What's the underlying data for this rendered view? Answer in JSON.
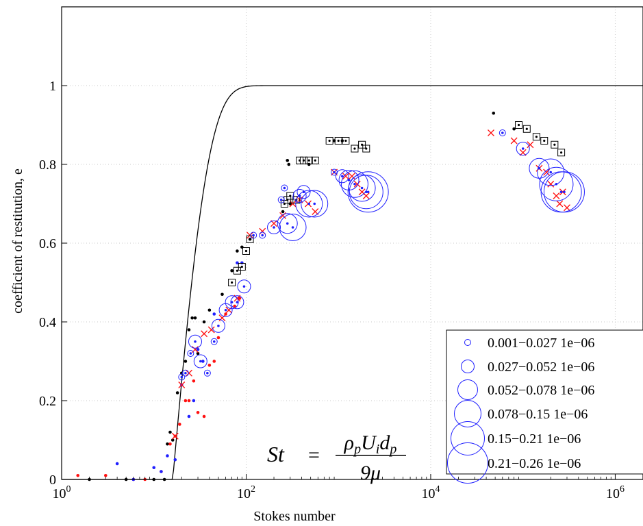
{
  "chart_data": {
    "type": "scatter",
    "x_scale": "log",
    "xlim": [
      1,
      2000000
    ],
    "ylim": [
      0,
      1.2
    ],
    "xlabel": "Stokes number",
    "ylabel": "coefficient of restitution, e",
    "x_ticks": [
      {
        "value": 1,
        "base": "10",
        "exp": "0"
      },
      {
        "value": 100,
        "base": "10",
        "exp": "2"
      },
      {
        "value": 10000,
        "base": "10",
        "exp": "4"
      },
      {
        "value": 1000000,
        "base": "10",
        "exp": "6"
      }
    ],
    "y_ticks": [
      0,
      0.2,
      0.4,
      0.6,
      0.8,
      1
    ],
    "grid": true,
    "theory_curve": {
      "color": "#000000",
      "x_onset": 16,
      "x_scale": 14
    },
    "formula": {
      "lhs": "St",
      "eq": "=",
      "num": "ρpUidp",
      "den": "9μ"
    },
    "legend": {
      "placement": "bottom-right",
      "entries": [
        {
          "label": "0.001−0.027 1e−06",
          "size": 1
        },
        {
          "label": "0.027−0.052 1e−06",
          "size": 2
        },
        {
          "label": "0.052−0.078 1e−06",
          "size": 3
        },
        {
          "label": "0.078−0.15 1e−06",
          "size": 4
        },
        {
          "label": "0.15−0.21 1e−06",
          "size": 5
        },
        {
          "label": "0.21−0.26 1e−06",
          "size": 6
        }
      ]
    },
    "colors": {
      "blue": "#1f1fff",
      "red": "#ff1010",
      "black": "#000000"
    },
    "series": [
      {
        "marker": "dot",
        "color": "#000000",
        "points": [
          [
            2,
            0
          ],
          [
            5,
            0
          ],
          [
            10,
            0
          ],
          [
            13,
            0
          ],
          [
            14,
            0.09
          ],
          [
            15,
            0.12
          ],
          [
            16,
            0.1
          ],
          [
            18,
            0.22
          ],
          [
            20,
            0.27
          ],
          [
            22,
            0.3
          ],
          [
            24,
            0.38
          ],
          [
            26,
            0.41
          ],
          [
            28,
            0.41
          ],
          [
            30,
            0.32
          ],
          [
            35,
            0.4
          ],
          [
            40,
            0.43
          ],
          [
            55,
            0.47
          ],
          [
            70,
            0.53
          ],
          [
            80,
            0.58
          ],
          [
            90,
            0.59
          ],
          [
            110,
            0.61
          ],
          [
            250,
            0.68
          ],
          [
            280,
            0.81
          ],
          [
            290,
            0.8
          ],
          [
            300,
            0.7
          ],
          [
            480,
            0.8
          ],
          [
            900,
            0.86
          ],
          [
            1100,
            0.86
          ],
          [
            48000,
            0.93
          ],
          [
            80000,
            0.89
          ]
        ]
      },
      {
        "marker": "dot",
        "color": "#ff1010",
        "points": [
          [
            1.5,
            0.01
          ],
          [
            3,
            0.01
          ],
          [
            6,
            0
          ],
          [
            8,
            0
          ],
          [
            12,
            0.02
          ],
          [
            15,
            0.09
          ],
          [
            17,
            0.11
          ],
          [
            19,
            0.14
          ],
          [
            22,
            0.2
          ],
          [
            24,
            0.2
          ],
          [
            27,
            0.25
          ],
          [
            30,
            0.17
          ],
          [
            35,
            0.16
          ],
          [
            40,
            0.29
          ],
          [
            45,
            0.3
          ],
          [
            50,
            0.36
          ],
          [
            60,
            0.42
          ],
          [
            75,
            0.44
          ],
          [
            85,
            0.46
          ]
        ]
      },
      {
        "marker": "dot",
        "color": "#1f1fff",
        "points": [
          [
            4,
            0.04
          ],
          [
            6,
            0
          ],
          [
            10,
            0.03
          ],
          [
            12,
            0.02
          ],
          [
            14,
            0.06
          ],
          [
            17,
            0.05
          ],
          [
            20,
            0.24
          ],
          [
            24,
            0.16
          ],
          [
            27,
            0.2
          ],
          [
            30,
            0.33
          ],
          [
            34,
            0.3
          ],
          [
            45,
            0.42
          ],
          [
            80,
            0.55
          ],
          [
            90,
            0.55
          ]
        ]
      },
      {
        "marker": "x",
        "color": "#ff1010",
        "points": [
          [
            17,
            0.11
          ],
          [
            20,
            0.24
          ],
          [
            24,
            0.27
          ],
          [
            28,
            0.33
          ],
          [
            35,
            0.37
          ],
          [
            42,
            0.38
          ],
          [
            55,
            0.41
          ],
          [
            65,
            0.43
          ],
          [
            80,
            0.46
          ],
          [
            110,
            0.62
          ],
          [
            150,
            0.63
          ],
          [
            200,
            0.65
          ],
          [
            250,
            0.67
          ],
          [
            320,
            0.7
          ],
          [
            380,
            0.71
          ],
          [
            470,
            0.7
          ],
          [
            560,
            0.68
          ],
          [
            900,
            0.78
          ],
          [
            1200,
            0.77
          ],
          [
            1400,
            0.77
          ],
          [
            1600,
            0.75
          ],
          [
            1800,
            0.73
          ],
          [
            2000,
            0.72
          ],
          [
            45000,
            0.88
          ],
          [
            80000,
            0.86
          ],
          [
            100000,
            0.83
          ],
          [
            120000,
            0.85
          ],
          [
            150000,
            0.79
          ],
          [
            180000,
            0.78
          ],
          [
            200000,
            0.75
          ],
          [
            230000,
            0.72
          ],
          [
            250000,
            0.7
          ],
          [
            270000,
            0.73
          ],
          [
            300000,
            0.69
          ]
        ]
      },
      {
        "marker": "circle",
        "color": "#1f1fff",
        "points": [
          [
            20,
            0.26,
            1
          ],
          [
            22,
            0.27,
            1
          ],
          [
            25,
            0.32,
            1
          ],
          [
            28,
            0.35,
            2
          ],
          [
            32,
            0.3,
            2
          ],
          [
            38,
            0.27,
            1
          ],
          [
            45,
            0.35,
            1
          ],
          [
            50,
            0.39,
            2
          ],
          [
            60,
            0.43,
            2
          ],
          [
            70,
            0.45,
            2
          ],
          [
            80,
            0.45,
            2
          ],
          [
            95,
            0.49,
            2
          ],
          [
            120,
            0.62,
            1
          ],
          [
            150,
            0.62,
            1
          ],
          [
            200,
            0.64,
            2
          ],
          [
            240,
            0.71,
            1
          ],
          [
            260,
            0.74,
            1
          ],
          [
            280,
            0.65,
            3
          ],
          [
            320,
            0.64,
            4
          ],
          [
            380,
            0.72,
            2
          ],
          [
            420,
            0.73,
            2
          ],
          [
            480,
            0.7,
            4
          ],
          [
            550,
            0.7,
            4
          ],
          [
            900,
            0.78,
            1
          ],
          [
            1100,
            0.77,
            2
          ],
          [
            1300,
            0.76,
            3
          ],
          [
            1500,
            0.75,
            4
          ],
          [
            1800,
            0.74,
            4
          ],
          [
            2000,
            0.73,
            5
          ],
          [
            2100,
            0.73,
            6
          ],
          [
            60000,
            0.88,
            1
          ],
          [
            100000,
            0.84,
            2
          ],
          [
            150000,
            0.79,
            3
          ],
          [
            200000,
            0.78,
            4
          ],
          [
            230000,
            0.75,
            5
          ],
          [
            260000,
            0.73,
            6
          ],
          [
            280000,
            0.73,
            6
          ]
        ]
      },
      {
        "marker": "square",
        "color": "#000000",
        "points": [
          [
            70,
            0.5
          ],
          [
            80,
            0.53
          ],
          [
            90,
            0.54
          ],
          [
            100,
            0.58
          ],
          [
            110,
            0.61
          ],
          [
            260,
            0.7
          ],
          [
            280,
            0.71
          ],
          [
            300,
            0.72
          ],
          [
            350,
            0.71
          ],
          [
            380,
            0.81
          ],
          [
            420,
            0.81
          ],
          [
            480,
            0.81
          ],
          [
            560,
            0.81
          ],
          [
            800,
            0.86
          ],
          [
            1000,
            0.86
          ],
          [
            1200,
            0.86
          ],
          [
            1500,
            0.84
          ],
          [
            1800,
            0.85
          ],
          [
            2000,
            0.84
          ],
          [
            90000,
            0.9
          ],
          [
            110000,
            0.89
          ],
          [
            140000,
            0.87
          ],
          [
            170000,
            0.86
          ],
          [
            220000,
            0.85
          ],
          [
            260000,
            0.83
          ]
        ]
      }
    ]
  }
}
